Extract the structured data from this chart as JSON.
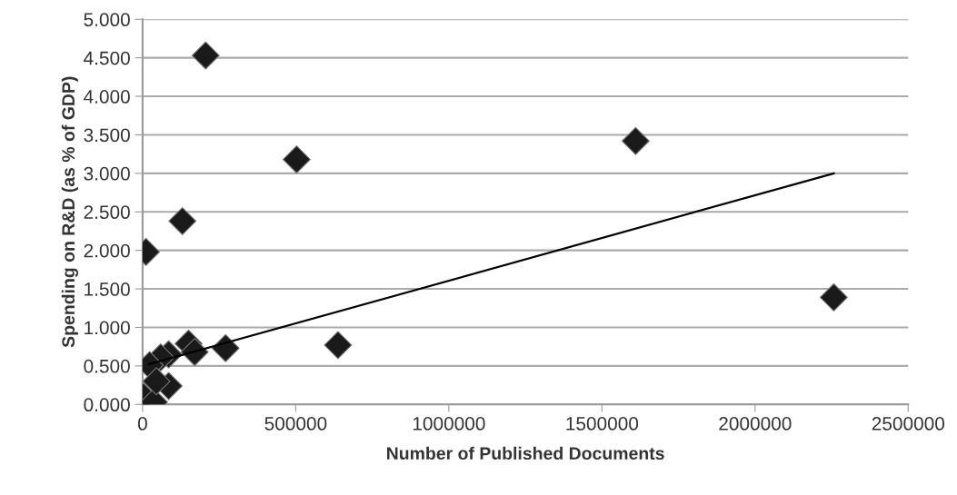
{
  "chart_data": {
    "type": "scatter",
    "xlabel": "Number of Published Documents",
    "ylabel": "Spending on R&D (as % of GDP)",
    "xlim": [
      0,
      2500000
    ],
    "xticks": [
      0,
      500000,
      1000000,
      1500000,
      2000000,
      2500000
    ],
    "ylim": [
      0,
      5
    ],
    "yticks": [
      {
        "value": 0,
        "label": "0.000"
      },
      {
        "value": 0.5,
        "label": "0.500"
      },
      {
        "value": 1,
        "label": "1.000"
      },
      {
        "value": 1.5,
        "label": "1.500"
      },
      {
        "value": 2,
        "label": "2.000"
      },
      {
        "value": 2.5,
        "label": "2.500"
      },
      {
        "value": 3,
        "label": "3.000"
      },
      {
        "value": 3.5,
        "label": "3.500"
      },
      {
        "value": 4,
        "label": "4.000"
      },
      {
        "value": 4.5,
        "label": "4.500"
      },
      {
        "value": 5,
        "label": "5.000"
      }
    ],
    "grid": "y",
    "marker": "diamond",
    "series": [
      {
        "color": "#1a1a1a",
        "x": [
          206000,
          503000,
          1610000,
          130000,
          11000,
          2257000,
          638000,
          150000,
          170000,
          271000,
          85000,
          59000,
          23000,
          85000,
          3000,
          37000,
          45000
        ],
        "values": [
          4.53,
          3.18,
          3.42,
          2.38,
          1.98,
          1.39,
          0.77,
          0.79,
          0.68,
          0.73,
          0.65,
          0.61,
          0.51,
          0.24,
          0.1,
          0.03,
          0.3
        ]
      },
      {
        "type": "line",
        "color": "#000000",
        "marker": "none",
        "x": [
          20000,
          2257000
        ],
        "values": [
          0.52,
          3.0
        ]
      }
    ]
  }
}
